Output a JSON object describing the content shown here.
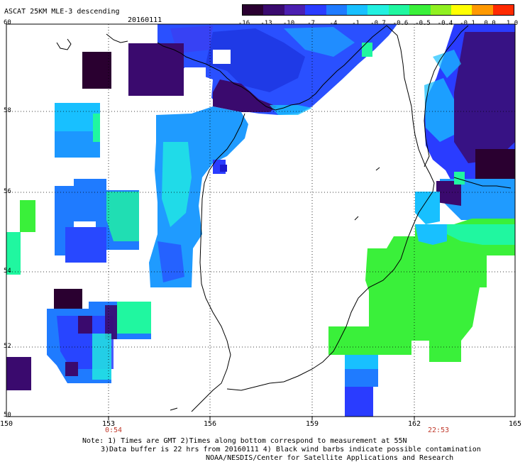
{
  "title": "ASCAT 25KM MLE-3 descending",
  "date": "20160111",
  "colorbar": {
    "labels": [
      "-16",
      "-13",
      "-10",
      "-7",
      "-4",
      "-1",
      "-0.7",
      "-0.6",
      "-0.5",
      "-0.4",
      "-0.1",
      "0.0",
      "1.0"
    ],
    "colors": [
      "#2a0030",
      "#3a0a6e",
      "#4b1fb0",
      "#2a3cff",
      "#1f7bff",
      "#18c0ff",
      "#22f0e0",
      "#20f7a0",
      "#3af03a",
      "#90f020",
      "#ffff00",
      "#ff9900",
      "#ff2a00"
    ]
  },
  "axes": {
    "x_ticks": [
      "150",
      "153",
      "156",
      "159",
      "162",
      "165"
    ],
    "y_ticks": [
      "60",
      "58",
      "56",
      "54",
      "52",
      "50"
    ]
  },
  "times": {
    "left": "0:54",
    "right": "22:53"
  },
  "notes": {
    "line1": "Note: 1) Times are GMT 2)Times along bottom correspond to measurement at 55N",
    "line2": "3)Data buffer is 22 hrs from 20160111 4) Black wind barbs indicate possible contamination",
    "line3": "NOAA/NESDIS/Center for Satellite Applications and Research"
  },
  "colors": {
    "frame": "#000000",
    "grid": "#000000",
    "time_text": "#c0392b"
  }
}
